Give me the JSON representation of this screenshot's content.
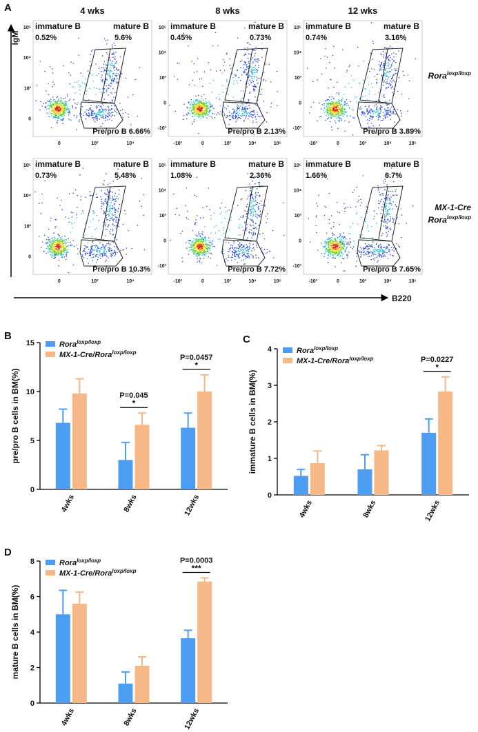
{
  "panel_a": {
    "label": "A",
    "y_axis_label": "IgM",
    "x_axis_label": "B220",
    "columns": [
      "4 wks",
      "8 wks",
      "12 wks"
    ],
    "rows": [
      {
        "lines": [
          {
            "text": "Rora",
            "sup": "loxp/loxp"
          }
        ]
      },
      {
        "lines": [
          {
            "text": "MX-1-Cre"
          },
          {
            "text": "Rora",
            "sup": "loxp/loxp"
          }
        ]
      }
    ],
    "plots": [
      [
        {
          "immature_label": "immature B",
          "immature_pct": "0.52%",
          "mature_label": "mature B",
          "mature_pct": "5.6%",
          "prepro": "Pre/pro B 6.66%",
          "y_ticks": [
            "10⁵",
            "10⁴",
            "10³",
            "0"
          ],
          "x_ticks": [
            "0",
            "10³",
            "10⁴"
          ]
        },
        {
          "immature_label": "immature B",
          "immature_pct": "0.45%",
          "mature_label": "mature B",
          "mature_pct": "0.73%",
          "prepro": "Pre/pro B 2.13%",
          "y_ticks": [
            "10⁵",
            "10⁴",
            "10³",
            "0",
            "-10³"
          ],
          "x_ticks": [
            "-10³",
            "0",
            "10³",
            "10⁴",
            "10⁵"
          ]
        },
        {
          "immature_label": "immature B",
          "immature_pct": "0.74%",
          "mature_label": "mature B",
          "mature_pct": "3.16%",
          "prepro": "Pre/pro B 3.89%",
          "y_ticks": [
            "10⁵",
            "10⁴",
            "10³",
            "0",
            "-10³"
          ],
          "x_ticks": [
            "-10³",
            "0",
            "10³",
            "10⁴",
            "10⁵"
          ]
        }
      ],
      [
        {
          "immature_label": "immature B",
          "immature_pct": "0.73%",
          "mature_label": "mature B",
          "mature_pct": "5.48%",
          "prepro": "Pre/pro B 10.3%",
          "y_ticks": [
            "10⁵",
            "10⁴",
            "10³",
            "0"
          ],
          "x_ticks": [
            "0",
            "10³",
            "10⁴"
          ]
        },
        {
          "immature_label": "immature B",
          "immature_pct": "1.08%",
          "mature_label": "mature B",
          "mature_pct": "2.36%",
          "prepro": "Pre/pro B 7.72%",
          "y_ticks": [
            "10⁵",
            "10⁴",
            "10³",
            "0",
            "-10³"
          ],
          "x_ticks": [
            "-10³",
            "0",
            "10³",
            "10⁴",
            "10⁵"
          ]
        },
        {
          "immature_label": "immature B",
          "immature_pct": "1.66%",
          "mature_label": "mature B",
          "mature_pct": "6.7%",
          "prepro": "Pre/pro B 7.65%",
          "y_ticks": [
            "10⁵",
            "10⁴",
            "10³",
            "0",
            "-10³"
          ],
          "x_ticks": [
            "-10³",
            "0",
            "10³",
            "10⁴",
            "10⁵"
          ]
        }
      ]
    ]
  },
  "chart_data": [
    {
      "type": "bar",
      "label": "B",
      "y_label": "pre/pro  B cells in BM(%)",
      "legend": "upper left",
      "categories": [
        "4wks",
        "8wks",
        "12wks"
      ],
      "series": [
        {
          "name": "Rora",
          "name_sup": "loxp/loxp",
          "color": "#4d9ef2",
          "values": [
            6.8,
            3.0,
            6.3
          ],
          "errors": [
            1.4,
            1.8,
            1.5
          ]
        },
        {
          "name": "MX-1-Cre/Rora",
          "name_sup": "loxp/loxp",
          "color": "#f5b886",
          "values": [
            9.8,
            6.6,
            10.0
          ],
          "errors": [
            1.5,
            1.2,
            1.7
          ]
        }
      ],
      "ylim": [
        0,
        15
      ],
      "yticks": [
        0,
        5,
        10,
        15
      ],
      "p_values": [
        null,
        "P=0.045",
        "P=0.0457"
      ],
      "significance": [
        null,
        "*",
        "*"
      ]
    },
    {
      "type": "bar",
      "label": "C",
      "y_label": "immature  B cells in BM(%)",
      "legend": "upper left",
      "categories": [
        "4wks",
        "8wks",
        "12wks"
      ],
      "series": [
        {
          "name": "Rora",
          "name_sup": "loxp/loxp",
          "color": "#4d9ef2",
          "values": [
            0.52,
            0.7,
            1.7
          ],
          "errors": [
            0.18,
            0.4,
            0.38
          ]
        },
        {
          "name": "MX-1-Cre/Rora",
          "name_sup": "loxp/loxp",
          "color": "#f5b886",
          "values": [
            0.87,
            1.22,
            2.83
          ],
          "errors": [
            0.33,
            0.13,
            0.4
          ]
        }
      ],
      "ylim": [
        0,
        4
      ],
      "yticks": [
        0,
        1,
        2,
        3,
        4
      ],
      "p_values": [
        null,
        null,
        "P=0.0227"
      ],
      "significance": [
        null,
        null,
        "*"
      ]
    },
    {
      "type": "bar",
      "label": "D",
      "y_label": "mature  B cells in BM(%)",
      "legend": "upper left",
      "categories": [
        "4wks",
        "8wks",
        "12wks"
      ],
      "series": [
        {
          "name": "Rora",
          "name_sup": "loxp/loxp",
          "color": "#4d9ef2",
          "values": [
            5.0,
            1.1,
            3.65
          ],
          "errors": [
            1.35,
            0.65,
            0.45
          ]
        },
        {
          "name": "MX-1-Cre/Rora",
          "name_sup": "loxp/loxp",
          "color": "#f5b886",
          "values": [
            5.6,
            2.1,
            6.85
          ],
          "errors": [
            0.65,
            0.5,
            0.2
          ]
        }
      ],
      "ylim": [
        0,
        8
      ],
      "yticks": [
        0,
        2,
        4,
        6,
        8
      ],
      "p_values": [
        null,
        null,
        "P=0.0003"
      ],
      "significance": [
        null,
        null,
        "***"
      ]
    }
  ]
}
